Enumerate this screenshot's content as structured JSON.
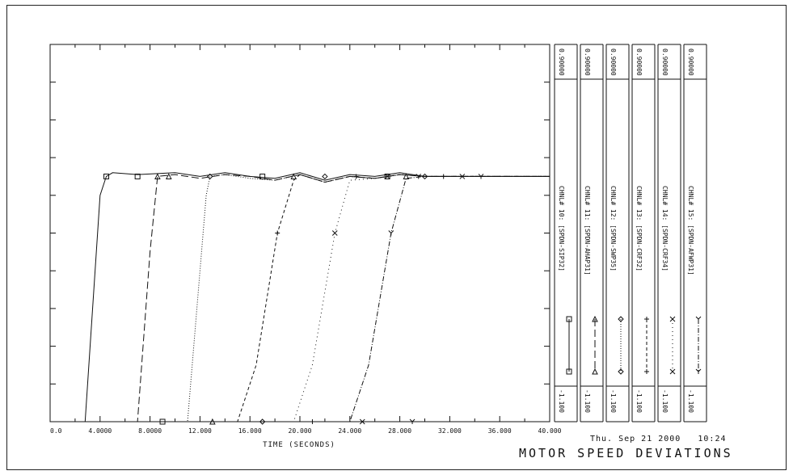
{
  "chart_data": {
    "type": "line",
    "title": "MOTOR SPEED DEVIATIONS",
    "timestamp": "Thu. Sep 21 2000   10:24",
    "xlabel": "TIME   (SECONDS)",
    "xlim": [
      0,
      40
    ],
    "ylim": [
      -1.1,
      0.9
    ],
    "x_tick_labels": [
      "0.0",
      "4.0000",
      "8.0000",
      "12.000",
      "16.000",
      "20.000",
      "24.000",
      "28.000",
      "32.000",
      "36.000",
      "40.000"
    ],
    "series": [
      {
        "name": "CHNL# 10: [SPDN-SIP32]",
        "marker": "square",
        "dash": "solid",
        "x": [
          0,
          2.8,
          4.0,
          4.5,
          5.0,
          7.0,
          10,
          12,
          14,
          16,
          18,
          20,
          22,
          24,
          26,
          28,
          30,
          34,
          40
        ],
        "y": [
          -1.1,
          -1.1,
          0.1,
          0.2,
          0.22,
          0.21,
          0.22,
          0.2,
          0.22,
          0.2,
          0.19,
          0.22,
          0.18,
          0.21,
          0.2,
          0.22,
          0.2,
          0.2,
          0.2
        ]
      },
      {
        "name": "CHNL# 11: [SPDN-AHAP31]",
        "marker": "triangle",
        "dash": "longdash",
        "x": [
          0,
          7.0,
          8.0,
          8.6,
          10,
          12,
          14,
          16,
          18,
          20,
          22,
          24,
          26,
          28,
          30,
          34,
          40
        ],
        "y": [
          -1.1,
          -1.1,
          -0.2,
          0.2,
          0.21,
          0.19,
          0.21,
          0.2,
          0.18,
          0.21,
          0.17,
          0.2,
          0.19,
          0.21,
          0.2,
          0.2,
          0.2
        ]
      },
      {
        "name": "CHNL# 12: [SPDN-SWP35]",
        "marker": "diamond",
        "dash": "dotted",
        "x": [
          0,
          11.0,
          12.5,
          12.8,
          14,
          16,
          18,
          20,
          22,
          24,
          26,
          28,
          30,
          34,
          40
        ],
        "y": [
          -1.1,
          -1.1,
          0.1,
          0.2,
          0.21,
          0.19,
          0.18,
          0.21,
          0.17,
          0.2,
          0.19,
          0.21,
          0.2,
          0.2,
          0.2
        ]
      },
      {
        "name": "CHNL# 13: [SPDN-CRF32]",
        "marker": "plus",
        "dash": "dashed",
        "x": [
          0,
          15.0,
          16.5,
          18.2,
          19.5,
          20,
          22,
          24,
          26,
          28,
          30,
          34,
          40
        ],
        "y": [
          -1.1,
          -1.1,
          -0.8,
          -0.1,
          0.18,
          0.21,
          0.17,
          0.2,
          0.19,
          0.21,
          0.2,
          0.2,
          0.2
        ]
      },
      {
        "name": "CHNL# 14: [SPDN-CRF34]",
        "marker": "x",
        "dash": "sparsedot",
        "x": [
          0,
          19.5,
          21.0,
          22.8,
          24,
          26,
          28,
          30,
          34,
          40
        ],
        "y": [
          -1.1,
          -1.1,
          -0.8,
          -0.1,
          0.18,
          0.19,
          0.21,
          0.2,
          0.2,
          0.2
        ]
      },
      {
        "name": "CHNL# 15: [SPDN-AFWP31]",
        "marker": "y",
        "dash": "dashdot",
        "x": [
          0,
          24.0,
          25.5,
          27.3,
          28.5,
          30,
          34,
          40
        ],
        "y": [
          -1.1,
          -1.1,
          -0.8,
          -0.1,
          0.19,
          0.2,
          0.2,
          0.2
        ]
      }
    ],
    "channel_scale": {
      "max_label": "0.90000",
      "min_label": "-1.100"
    },
    "grid": false
  }
}
